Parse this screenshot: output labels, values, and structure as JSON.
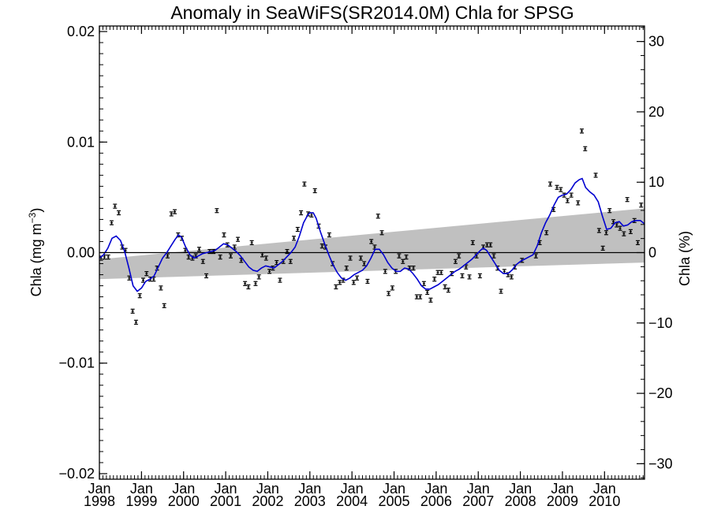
{
  "chart_data": {
    "type": "line",
    "title": "Anomaly in SeaWiFS(SR2014.0M) Chla for SPSG",
    "ylabel_left": "Chla (mg m",
    "ylabel_left_sup": "−3",
    "ylabel_left_close": ")",
    "ylabel_right": "Chla (%)",
    "xlim": [
      1998.0,
      2010.95
    ],
    "ylim": [
      -0.0205,
      0.0205
    ],
    "ylim_right": [
      -32.2,
      32.2
    ],
    "y_ticks": [
      {
        "v": 0.02,
        "label": "0.02"
      },
      {
        "v": 0.01,
        "label": "0.01"
      },
      {
        "v": 0.0,
        "label": "0.00"
      },
      {
        "v": -0.01,
        "label": "−0.01"
      },
      {
        "v": -0.02,
        "label": "−0.02"
      }
    ],
    "y2_ticks": [
      {
        "v": 30,
        "label": "30"
      },
      {
        "v": 20,
        "label": "20"
      },
      {
        "v": 10,
        "label": "10"
      },
      {
        "v": 0,
        "label": "0"
      },
      {
        "v": -10,
        "label": "−10"
      },
      {
        "v": -20,
        "label": "−20"
      },
      {
        "v": -30,
        "label": "−30"
      }
    ],
    "x_ticks": [
      {
        "v": 1998,
        "month": "Jan",
        "year": "1998"
      },
      {
        "v": 1999,
        "month": "Jan",
        "year": "1999"
      },
      {
        "v": 2000,
        "month": "Jan",
        "year": "2000"
      },
      {
        "v": 2001,
        "month": "Jan",
        "year": "2001"
      },
      {
        "v": 2002,
        "month": "Jan",
        "year": "2002"
      },
      {
        "v": 2003,
        "month": "Jan",
        "year": "2003"
      },
      {
        "v": 2004,
        "month": "Jan",
        "year": "2004"
      },
      {
        "v": 2005,
        "month": "Jan",
        "year": "2005"
      },
      {
        "v": 2006,
        "month": "Jan",
        "year": "2006"
      },
      {
        "v": 2007,
        "month": "Jan",
        "year": "2007"
      },
      {
        "v": 2008,
        "month": "Jan",
        "year": "2008"
      },
      {
        "v": 2009,
        "month": "Jan",
        "year": "2009"
      },
      {
        "v": 2010,
        "month": "Jan",
        "year": "2010"
      }
    ],
    "trend_band": {
      "x": [
        1998.0,
        2010.95
      ],
      "lower": [
        -0.0024,
        -0.0009
      ],
      "upper": [
        -0.0006,
        0.004
      ]
    },
    "zero_line": 0,
    "colors": {
      "points": "#000000",
      "smooth": "#0000d0",
      "band": "#c0c0c0",
      "zero": "#000000"
    },
    "points": [
      {
        "x": 1998.04,
        "y": -0.0005
      },
      {
        "x": 1998.12,
        "y": -0.0004
      },
      {
        "x": 1998.21,
        "y": -0.0004
      },
      {
        "x": 1998.29,
        "y": 0.0027
      },
      {
        "x": 1998.37,
        "y": 0.0042
      },
      {
        "x": 1998.46,
        "y": 0.0036
      },
      {
        "x": 1998.54,
        "y": 0.0005
      },
      {
        "x": 1998.62,
        "y": 0.0002
      },
      {
        "x": 1998.71,
        "y": -0.0023
      },
      {
        "x": 1998.79,
        "y": -0.0053
      },
      {
        "x": 1998.87,
        "y": -0.0063
      },
      {
        "x": 1998.96,
        "y": -0.0039
      },
      {
        "x": 1999.04,
        "y": -0.0025
      },
      {
        "x": 1999.12,
        "y": -0.0019
      },
      {
        "x": 1999.21,
        "y": -0.0024
      },
      {
        "x": 1999.29,
        "y": -0.0024
      },
      {
        "x": 1999.37,
        "y": -0.0014
      },
      {
        "x": 1999.46,
        "y": -0.0032
      },
      {
        "x": 1999.54,
        "y": -0.0048
      },
      {
        "x": 1999.62,
        "y": -0.0003
      },
      {
        "x": 1999.71,
        "y": 0.0035
      },
      {
        "x": 1999.79,
        "y": 0.0037
      },
      {
        "x": 1999.87,
        "y": 0.0016
      },
      {
        "x": 1999.96,
        "y": 0.0013
      },
      {
        "x": 2000.04,
        "y": 0.0002
      },
      {
        "x": 2000.12,
        "y": -0.0004
      },
      {
        "x": 2000.21,
        "y": -0.0005
      },
      {
        "x": 2000.29,
        "y": -0.0003
      },
      {
        "x": 2000.37,
        "y": 0.0003
      },
      {
        "x": 2000.46,
        "y": -0.0008
      },
      {
        "x": 2000.54,
        "y": -0.0021
      },
      {
        "x": 2000.62,
        "y": 0.0001
      },
      {
        "x": 2000.71,
        "y": 0.0001
      },
      {
        "x": 2000.79,
        "y": 0.0038
      },
      {
        "x": 2000.87,
        "y": -0.0004
      },
      {
        "x": 2000.96,
        "y": 0.0016
      },
      {
        "x": 2001.04,
        "y": 0.0007
      },
      {
        "x": 2001.12,
        "y": -0.0003
      },
      {
        "x": 2001.21,
        "y": 0.0005
      },
      {
        "x": 2001.29,
        "y": 0.0012
      },
      {
        "x": 2001.37,
        "y": -0.0007
      },
      {
        "x": 2001.46,
        "y": -0.0028
      },
      {
        "x": 2001.54,
        "y": -0.0031
      },
      {
        "x": 2001.62,
        "y": 0.0009
      },
      {
        "x": 2001.71,
        "y": -0.0028
      },
      {
        "x": 2001.79,
        "y": -0.0022
      },
      {
        "x": 2001.87,
        "y": -0.0002
      },
      {
        "x": 2001.96,
        "y": -0.0005
      },
      {
        "x": 2002.04,
        "y": -0.0017
      },
      {
        "x": 2002.12,
        "y": -0.0014
      },
      {
        "x": 2002.21,
        "y": -0.0009
      },
      {
        "x": 2002.29,
        "y": -0.0025
      },
      {
        "x": 2002.37,
        "y": -0.0008
      },
      {
        "x": 2002.46,
        "y": 0.0001
      },
      {
        "x": 2002.54,
        "y": -0.0008
      },
      {
        "x": 2002.62,
        "y": 0.0013
      },
      {
        "x": 2002.71,
        "y": 0.0021
      },
      {
        "x": 2002.79,
        "y": 0.0036
      },
      {
        "x": 2002.87,
        "y": 0.0062
      },
      {
        "x": 2002.96,
        "y": 0.0035
      },
      {
        "x": 2003.04,
        "y": 0.0034
      },
      {
        "x": 2003.12,
        "y": 0.0056
      },
      {
        "x": 2003.21,
        "y": 0.0024
      },
      {
        "x": 2003.29,
        "y": 0.0006
      },
      {
        "x": 2003.37,
        "y": 0.0005
      },
      {
        "x": 2003.46,
        "y": 0.0016
      },
      {
        "x": 2003.54,
        "y": -0.001
      },
      {
        "x": 2003.62,
        "y": -0.0031
      },
      {
        "x": 2003.71,
        "y": -0.0027
      },
      {
        "x": 2003.79,
        "y": -0.0025
      },
      {
        "x": 2003.87,
        "y": -0.0014
      },
      {
        "x": 2003.96,
        "y": -0.0005
      },
      {
        "x": 2004.04,
        "y": -0.0027
      },
      {
        "x": 2004.12,
        "y": -0.0023
      },
      {
        "x": 2004.21,
        "y": -0.0005
      },
      {
        "x": 2004.29,
        "y": -0.001
      },
      {
        "x": 2004.37,
        "y": -0.0026
      },
      {
        "x": 2004.46,
        "y": 0.001
      },
      {
        "x": 2004.54,
        "y": 0.0005
      },
      {
        "x": 2004.62,
        "y": 0.0033
      },
      {
        "x": 2004.71,
        "y": 0.0018
      },
      {
        "x": 2004.79,
        "y": -0.0017
      },
      {
        "x": 2004.87,
        "y": -0.0037
      },
      {
        "x": 2004.96,
        "y": -0.0032
      },
      {
        "x": 2005.04,
        "y": -0.0017
      },
      {
        "x": 2005.12,
        "y": -0.0003
      },
      {
        "x": 2005.21,
        "y": -0.0008
      },
      {
        "x": 2005.29,
        "y": -0.0004
      },
      {
        "x": 2005.37,
        "y": -0.0014
      },
      {
        "x": 2005.46,
        "y": -0.0014
      },
      {
        "x": 2005.54,
        "y": -0.004
      },
      {
        "x": 2005.62,
        "y": -0.004
      },
      {
        "x": 2005.71,
        "y": -0.0028
      },
      {
        "x": 2005.79,
        "y": -0.0036
      },
      {
        "x": 2005.87,
        "y": -0.0043
      },
      {
        "x": 2005.96,
        "y": -0.0024
      },
      {
        "x": 2006.04,
        "y": -0.0018
      },
      {
        "x": 2006.12,
        "y": -0.0018
      },
      {
        "x": 2006.21,
        "y": -0.0031
      },
      {
        "x": 2006.29,
        "y": -0.0034
      },
      {
        "x": 2006.37,
        "y": -0.0019
      },
      {
        "x": 2006.46,
        "y": -0.0008
      },
      {
        "x": 2006.54,
        "y": -0.0003
      },
      {
        "x": 2006.62,
        "y": -0.0021
      },
      {
        "x": 2006.71,
        "y": -0.0013
      },
      {
        "x": 2006.79,
        "y": -0.0022
      },
      {
        "x": 2006.87,
        "y": 0.0009
      },
      {
        "x": 2006.96,
        "y": -0.0003
      },
      {
        "x": 2007.04,
        "y": -0.0021
      },
      {
        "x": 2007.12,
        "y": 0.0005
      },
      {
        "x": 2007.21,
        "y": 0.0007
      },
      {
        "x": 2007.29,
        "y": 0.0007
      },
      {
        "x": 2007.37,
        "y": -0.0003
      },
      {
        "x": 2007.46,
        "y": -0.0014
      },
      {
        "x": 2007.54,
        "y": -0.0035
      },
      {
        "x": 2007.62,
        "y": -0.0017
      },
      {
        "x": 2007.71,
        "y": -0.002
      },
      {
        "x": 2007.79,
        "y": -0.0022
      },
      {
        "x": 2007.87,
        "y": -0.0013
      },
      {
        "x": 2008.04,
        "y": -0.0007
      },
      {
        "x": 2008.37,
        "y": -0.0003
      },
      {
        "x": 2008.46,
        "y": 0.0009
      },
      {
        "x": 2008.62,
        "y": 0.0018
      },
      {
        "x": 2008.71,
        "y": 0.0062
      },
      {
        "x": 2008.79,
        "y": 0.0039
      },
      {
        "x": 2008.87,
        "y": 0.0059
      },
      {
        "x": 2008.96,
        "y": 0.0057
      },
      {
        "x": 2009.04,
        "y": 0.0052
      },
      {
        "x": 2009.12,
        "y": 0.0047
      },
      {
        "x": 2009.21,
        "y": 0.0052
      },
      {
        "x": 2009.37,
        "y": 0.0045
      },
      {
        "x": 2009.46,
        "y": 0.011
      },
      {
        "x": 2009.54,
        "y": 0.0094
      },
      {
        "x": 2009.79,
        "y": 0.007
      },
      {
        "x": 2009.87,
        "y": 0.002
      },
      {
        "x": 2009.96,
        "y": 0.0004
      },
      {
        "x": 2010.04,
        "y": 0.0018
      },
      {
        "x": 2010.12,
        "y": 0.0038
      },
      {
        "x": 2010.21,
        "y": 0.0028
      },
      {
        "x": 2010.29,
        "y": 0.0025
      },
      {
        "x": 2010.37,
        "y": 0.0022
      },
      {
        "x": 2010.46,
        "y": 0.0017
      },
      {
        "x": 2010.54,
        "y": 0.0048
      },
      {
        "x": 2010.62,
        "y": 0.0019
      },
      {
        "x": 2010.71,
        "y": 0.0029
      },
      {
        "x": 2010.79,
        "y": 0.0009
      },
      {
        "x": 2010.87,
        "y": 0.0043
      }
    ],
    "smooth_line": [
      [
        1998.0,
        -0.0005
      ],
      [
        1998.1,
        -0.0002
      ],
      [
        1998.2,
        0.0004
      ],
      [
        1998.3,
        0.0013
      ],
      [
        1998.4,
        0.0015
      ],
      [
        1998.5,
        0.0011
      ],
      [
        1998.6,
        0.0001
      ],
      [
        1998.7,
        -0.0014
      ],
      [
        1998.8,
        -0.003
      ],
      [
        1998.9,
        -0.0035
      ],
      [
        1999.0,
        -0.0032
      ],
      [
        1999.1,
        -0.0026
      ],
      [
        1999.2,
        -0.0024
      ],
      [
        1999.3,
        -0.0021
      ],
      [
        1999.4,
        -0.0013
      ],
      [
        1999.5,
        -0.0005
      ],
      [
        1999.6,
        0.0
      ],
      [
        1999.7,
        0.0006
      ],
      [
        1999.8,
        0.0012
      ],
      [
        1999.88,
        0.0016
      ],
      [
        1999.95,
        0.0014
      ],
      [
        2000.05,
        0.0005
      ],
      [
        2000.15,
        -0.0002
      ],
      [
        2000.25,
        -0.0005
      ],
      [
        2000.35,
        -0.0003
      ],
      [
        2000.45,
        -0.0001
      ],
      [
        2000.55,
        0.0
      ],
      [
        2000.65,
        0.0001
      ],
      [
        2000.75,
        0.0002
      ],
      [
        2000.85,
        0.0005
      ],
      [
        2000.95,
        0.0008
      ],
      [
        2001.05,
        0.0007
      ],
      [
        2001.15,
        0.0004
      ],
      [
        2001.25,
        0.0001
      ],
      [
        2001.35,
        -0.0003
      ],
      [
        2001.45,
        -0.0008
      ],
      [
        2001.55,
        -0.0013
      ],
      [
        2001.65,
        -0.0016
      ],
      [
        2001.75,
        -0.0017
      ],
      [
        2001.85,
        -0.0014
      ],
      [
        2001.95,
        -0.0012
      ],
      [
        2002.05,
        -0.0013
      ],
      [
        2002.15,
        -0.0014
      ],
      [
        2002.25,
        -0.0011
      ],
      [
        2002.35,
        -0.0008
      ],
      [
        2002.45,
        -0.0004
      ],
      [
        2002.55,
        0.0
      ],
      [
        2002.65,
        0.0005
      ],
      [
        2002.75,
        0.0015
      ],
      [
        2002.85,
        0.0027
      ],
      [
        2002.95,
        0.0034
      ],
      [
        2003.0,
        0.0036
      ],
      [
        2003.08,
        0.0036
      ],
      [
        2003.15,
        0.0031
      ],
      [
        2003.25,
        0.0019
      ],
      [
        2003.35,
        0.0008
      ],
      [
        2003.45,
        -0.0002
      ],
      [
        2003.55,
        -0.0011
      ],
      [
        2003.65,
        -0.0018
      ],
      [
        2003.75,
        -0.0023
      ],
      [
        2003.85,
        -0.0025
      ],
      [
        2003.95,
        -0.0023
      ],
      [
        2004.05,
        -0.002
      ],
      [
        2004.15,
        -0.0018
      ],
      [
        2004.25,
        -0.0016
      ],
      [
        2004.35,
        -0.0012
      ],
      [
        2004.45,
        -0.0005
      ],
      [
        2004.55,
        0.0003
      ],
      [
        2004.65,
        0.0003
      ],
      [
        2004.75,
        -0.0002
      ],
      [
        2004.85,
        -0.0009
      ],
      [
        2004.95,
        -0.0014
      ],
      [
        2005.05,
        -0.0017
      ],
      [
        2005.15,
        -0.0017
      ],
      [
        2005.25,
        -0.0014
      ],
      [
        2005.35,
        -0.0015
      ],
      [
        2005.45,
        -0.0019
      ],
      [
        2005.55,
        -0.0024
      ],
      [
        2005.65,
        -0.003
      ],
      [
        2005.75,
        -0.0033
      ],
      [
        2005.85,
        -0.0033
      ],
      [
        2005.95,
        -0.0031
      ],
      [
        2006.05,
        -0.0029
      ],
      [
        2006.15,
        -0.0026
      ],
      [
        2006.25,
        -0.0023
      ],
      [
        2006.35,
        -0.002
      ],
      [
        2006.45,
        -0.0017
      ],
      [
        2006.55,
        -0.0015
      ],
      [
        2006.65,
        -0.0012
      ],
      [
        2006.75,
        -0.0009
      ],
      [
        2006.85,
        -0.0006
      ],
      [
        2006.95,
        -0.0002
      ],
      [
        2007.05,
        0.0002
      ],
      [
        2007.12,
        0.0004
      ],
      [
        2007.2,
        0.0002
      ],
      [
        2007.3,
        -0.0004
      ],
      [
        2007.4,
        -0.001
      ],
      [
        2007.5,
        -0.0016
      ],
      [
        2007.6,
        -0.0019
      ],
      [
        2007.7,
        -0.0019
      ],
      [
        2007.8,
        -0.0016
      ],
      [
        2007.9,
        -0.0011
      ],
      [
        2008.0,
        -0.0008
      ],
      [
        2008.1,
        -0.0006
      ],
      [
        2008.2,
        -0.0004
      ],
      [
        2008.3,
        -0.0002
      ],
      [
        2008.4,
        0.0006
      ],
      [
        2008.5,
        0.0018
      ],
      [
        2008.6,
        0.0027
      ],
      [
        2008.7,
        0.0034
      ],
      [
        2008.8,
        0.0043
      ],
      [
        2008.9,
        0.005
      ],
      [
        2009.0,
        0.0052
      ],
      [
        2009.1,
        0.0053
      ],
      [
        2009.2,
        0.0057
      ],
      [
        2009.3,
        0.0063
      ],
      [
        2009.4,
        0.0066
      ],
      [
        2009.47,
        0.0067
      ],
      [
        2009.55,
        0.0059
      ],
      [
        2009.65,
        0.0055
      ],
      [
        2009.75,
        0.0052
      ],
      [
        2009.85,
        0.0046
      ],
      [
        2009.95,
        0.0033
      ],
      [
        2010.05,
        0.0021
      ],
      [
        2010.15,
        0.0022
      ],
      [
        2010.25,
        0.0027
      ],
      [
        2010.35,
        0.0028
      ],
      [
        2010.45,
        0.0024
      ],
      [
        2010.55,
        0.0025
      ],
      [
        2010.65,
        0.0028
      ],
      [
        2010.75,
        0.0029
      ],
      [
        2010.85,
        0.0029
      ],
      [
        2010.95,
        0.0026
      ]
    ]
  }
}
